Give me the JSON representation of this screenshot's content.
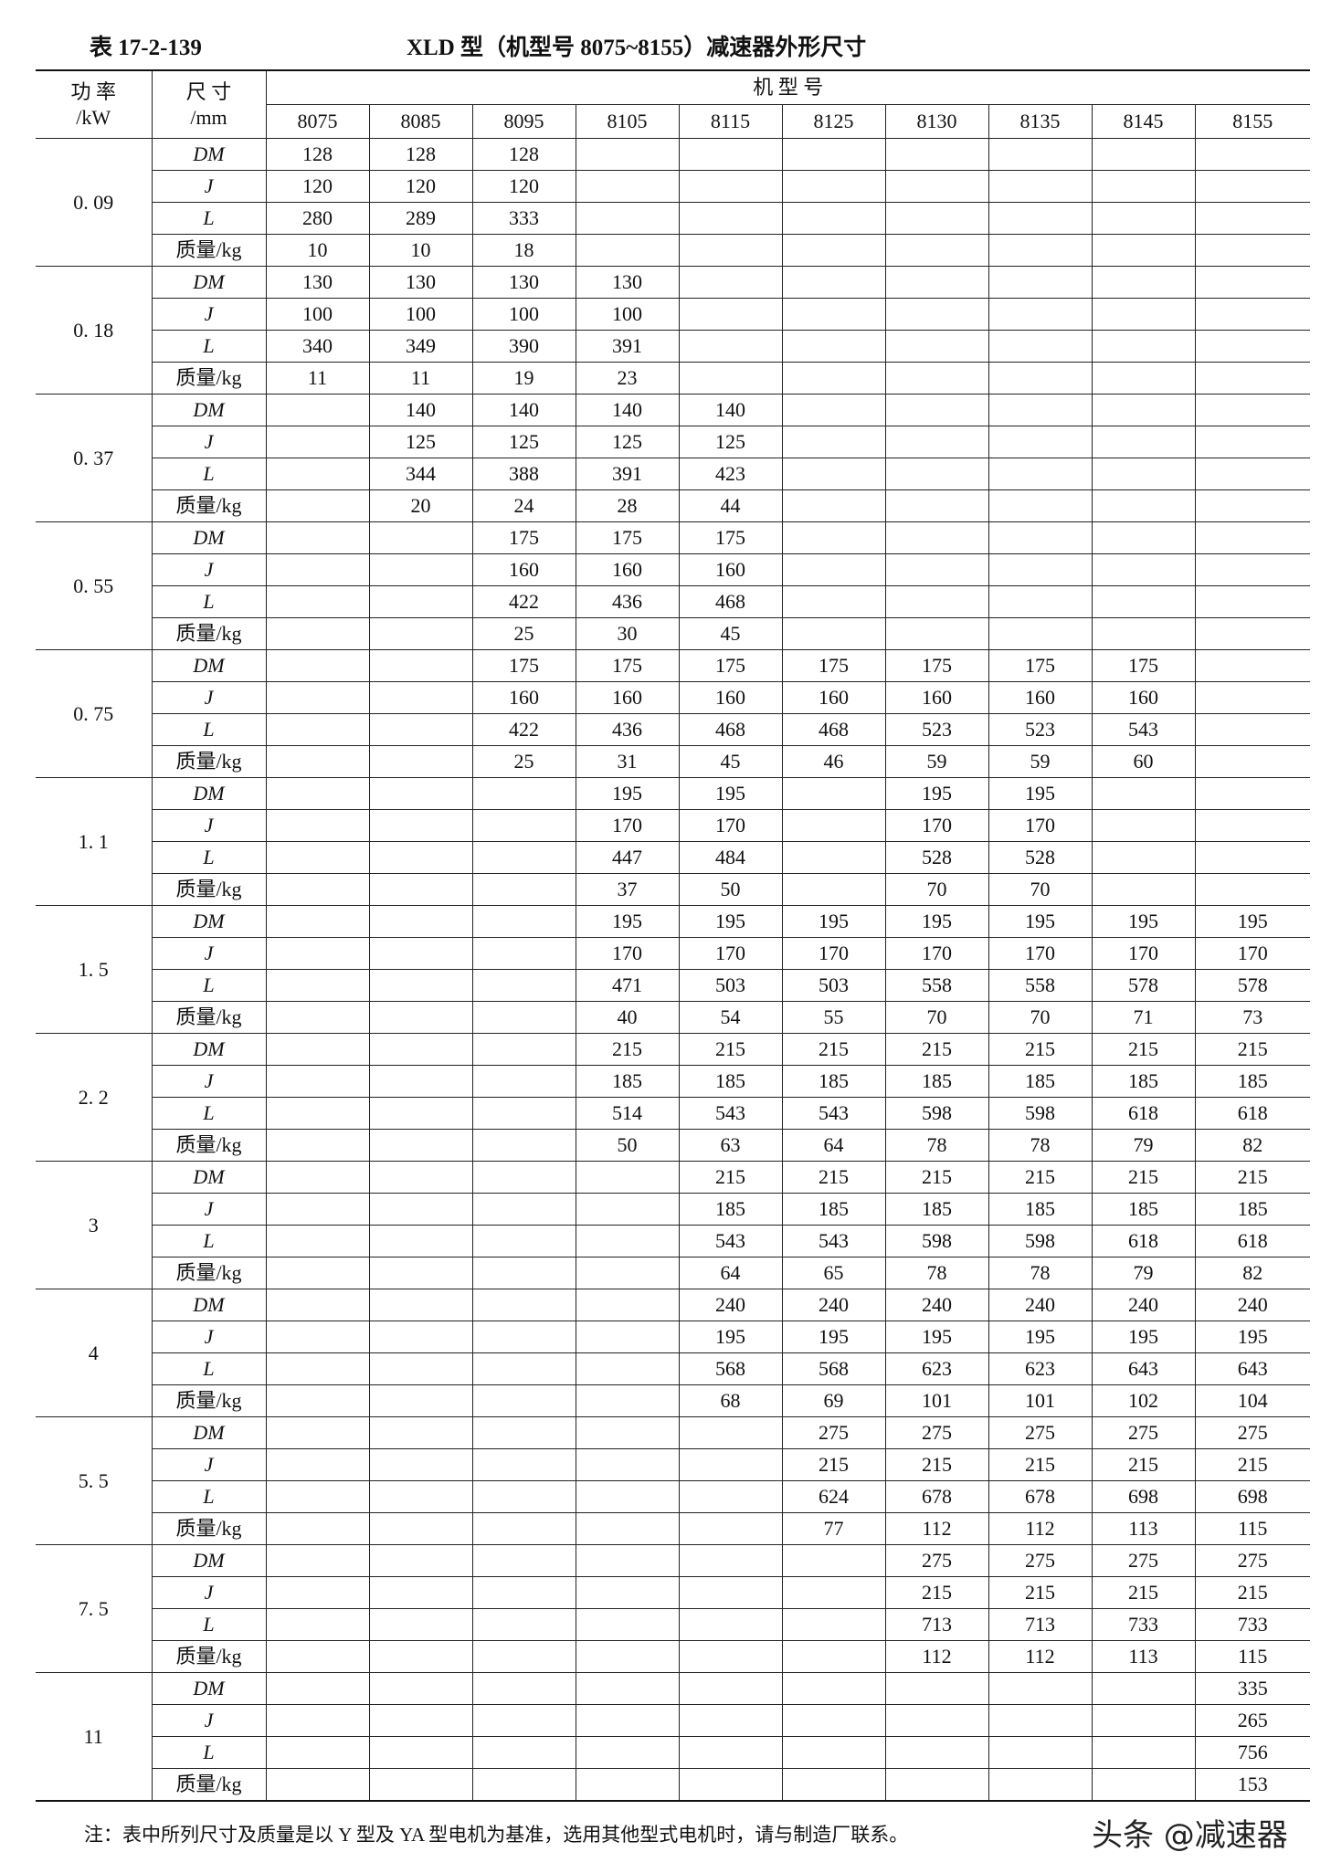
{
  "header": {
    "table_no": "表 17-2-139",
    "title": "XLD 型（机型号 8075~8155）减速器外形尺寸"
  },
  "table": {
    "head": {
      "power": "功 率",
      "power_unit": "/kW",
      "size": "尺 寸",
      "size_unit": "/mm",
      "model": "机 型 号"
    },
    "models": [
      "8075",
      "8085",
      "8095",
      "8105",
      "8115",
      "8125",
      "8130",
      "8135",
      "8145",
      "8155"
    ],
    "row_labels": [
      "DM",
      "J",
      "L",
      "质量/kg"
    ],
    "groups": [
      {
        "power": "0. 09",
        "rows": [
          [
            128,
            128,
            128,
            null,
            null,
            null,
            null,
            null,
            null,
            null
          ],
          [
            120,
            120,
            120,
            null,
            null,
            null,
            null,
            null,
            null,
            null
          ],
          [
            280,
            289,
            333,
            null,
            null,
            null,
            null,
            null,
            null,
            null
          ],
          [
            10,
            10,
            18,
            null,
            null,
            null,
            null,
            null,
            null,
            null
          ]
        ]
      },
      {
        "power": "0. 18",
        "rows": [
          [
            130,
            130,
            130,
            130,
            null,
            null,
            null,
            null,
            null,
            null
          ],
          [
            100,
            100,
            100,
            100,
            null,
            null,
            null,
            null,
            null,
            null
          ],
          [
            340,
            349,
            390,
            391,
            null,
            null,
            null,
            null,
            null,
            null
          ],
          [
            11,
            11,
            19,
            23,
            null,
            null,
            null,
            null,
            null,
            null
          ]
        ]
      },
      {
        "power": "0. 37",
        "rows": [
          [
            null,
            140,
            140,
            140,
            140,
            null,
            null,
            null,
            null,
            null
          ],
          [
            null,
            125,
            125,
            125,
            125,
            null,
            null,
            null,
            null,
            null
          ],
          [
            null,
            344,
            388,
            391,
            423,
            null,
            null,
            null,
            null,
            null
          ],
          [
            null,
            20,
            24,
            28,
            44,
            null,
            null,
            null,
            null,
            null
          ]
        ]
      },
      {
        "power": "0. 55",
        "rows": [
          [
            null,
            null,
            175,
            175,
            175,
            null,
            null,
            null,
            null,
            null
          ],
          [
            null,
            null,
            160,
            160,
            160,
            null,
            null,
            null,
            null,
            null
          ],
          [
            null,
            null,
            422,
            436,
            468,
            null,
            null,
            null,
            null,
            null
          ],
          [
            null,
            null,
            25,
            30,
            45,
            null,
            null,
            null,
            null,
            null
          ]
        ]
      },
      {
        "power": "0. 75",
        "rows": [
          [
            null,
            null,
            175,
            175,
            175,
            175,
            175,
            175,
            175,
            null
          ],
          [
            null,
            null,
            160,
            160,
            160,
            160,
            160,
            160,
            160,
            null
          ],
          [
            null,
            null,
            422,
            436,
            468,
            468,
            523,
            523,
            543,
            null
          ],
          [
            null,
            null,
            25,
            31,
            45,
            46,
            59,
            59,
            60,
            null
          ]
        ]
      },
      {
        "power": "1. 1",
        "rows": [
          [
            null,
            null,
            null,
            195,
            195,
            null,
            195,
            195,
            null,
            null
          ],
          [
            null,
            null,
            null,
            170,
            170,
            null,
            170,
            170,
            null,
            null
          ],
          [
            null,
            null,
            null,
            447,
            484,
            null,
            528,
            528,
            null,
            null
          ],
          [
            null,
            null,
            null,
            37,
            50,
            null,
            70,
            70,
            null,
            null
          ]
        ]
      },
      {
        "power": "1. 5",
        "rows": [
          [
            null,
            null,
            null,
            195,
            195,
            195,
            195,
            195,
            195,
            195
          ],
          [
            null,
            null,
            null,
            170,
            170,
            170,
            170,
            170,
            170,
            170
          ],
          [
            null,
            null,
            null,
            471,
            503,
            503,
            558,
            558,
            578,
            578
          ],
          [
            null,
            null,
            null,
            40,
            54,
            55,
            70,
            70,
            71,
            73
          ]
        ]
      },
      {
        "power": "2. 2",
        "rows": [
          [
            null,
            null,
            null,
            215,
            215,
            215,
            215,
            215,
            215,
            215
          ],
          [
            null,
            null,
            null,
            185,
            185,
            185,
            185,
            185,
            185,
            185
          ],
          [
            null,
            null,
            null,
            514,
            543,
            543,
            598,
            598,
            618,
            618
          ],
          [
            null,
            null,
            null,
            50,
            63,
            64,
            78,
            78,
            79,
            82
          ]
        ]
      },
      {
        "power": "3",
        "rows": [
          [
            null,
            null,
            null,
            null,
            215,
            215,
            215,
            215,
            215,
            215
          ],
          [
            null,
            null,
            null,
            null,
            185,
            185,
            185,
            185,
            185,
            185
          ],
          [
            null,
            null,
            null,
            null,
            543,
            543,
            598,
            598,
            618,
            618
          ],
          [
            null,
            null,
            null,
            null,
            64,
            65,
            78,
            78,
            79,
            82
          ]
        ]
      },
      {
        "power": "4",
        "rows": [
          [
            null,
            null,
            null,
            null,
            240,
            240,
            240,
            240,
            240,
            240
          ],
          [
            null,
            null,
            null,
            null,
            195,
            195,
            195,
            195,
            195,
            195
          ],
          [
            null,
            null,
            null,
            null,
            568,
            568,
            623,
            623,
            643,
            643
          ],
          [
            null,
            null,
            null,
            null,
            68,
            69,
            101,
            101,
            102,
            104
          ]
        ]
      },
      {
        "power": "5. 5",
        "rows": [
          [
            null,
            null,
            null,
            null,
            null,
            275,
            275,
            275,
            275,
            275
          ],
          [
            null,
            null,
            null,
            null,
            null,
            215,
            215,
            215,
            215,
            215
          ],
          [
            null,
            null,
            null,
            null,
            null,
            624,
            678,
            678,
            698,
            698
          ],
          [
            null,
            null,
            null,
            null,
            null,
            77,
            112,
            112,
            113,
            115
          ]
        ]
      },
      {
        "power": "7. 5",
        "rows": [
          [
            null,
            null,
            null,
            null,
            null,
            null,
            275,
            275,
            275,
            275
          ],
          [
            null,
            null,
            null,
            null,
            null,
            null,
            215,
            215,
            215,
            215
          ],
          [
            null,
            null,
            null,
            null,
            null,
            null,
            713,
            713,
            733,
            733
          ],
          [
            null,
            null,
            null,
            null,
            null,
            null,
            112,
            112,
            113,
            115
          ]
        ]
      },
      {
        "power": "11",
        "rows": [
          [
            null,
            null,
            null,
            null,
            null,
            null,
            null,
            null,
            null,
            335
          ],
          [
            null,
            null,
            null,
            null,
            null,
            null,
            null,
            null,
            null,
            265
          ],
          [
            null,
            null,
            null,
            null,
            null,
            null,
            null,
            null,
            null,
            756
          ],
          [
            null,
            null,
            null,
            null,
            null,
            null,
            null,
            null,
            null,
            153
          ]
        ]
      }
    ]
  },
  "note": "注：表中所列尺寸及质量是以 Y 型及 YA 型电机为基准，选用其他型式电机时，请与制造厂联系。",
  "watermark": "头条 @减速器"
}
